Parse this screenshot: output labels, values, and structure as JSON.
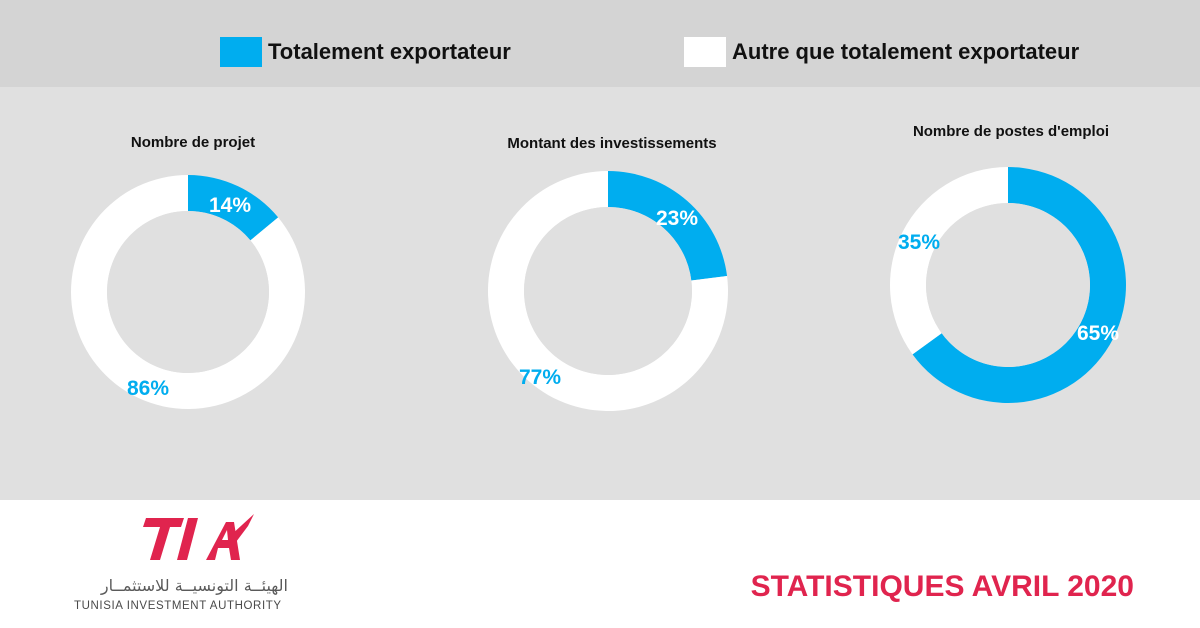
{
  "colors": {
    "primary": "#00adef",
    "secondary": "#ffffff",
    "brand_red": "#e0244e",
    "legend_band": "#d4d4d4",
    "chart_background": "#e0e0e0"
  },
  "legend": [
    {
      "label": "Totalement exportateur",
      "color": "#00adef"
    },
    {
      "label": "Autre que totalement exportateur",
      "color": "#ffffff"
    }
  ],
  "chart_data": [
    {
      "type": "pie",
      "title": "Nombre de projet",
      "categories": [
        "Totalement exportateur",
        "Autre que totalement exportateur"
      ],
      "values": [
        14,
        86
      ],
      "labels": [
        "14%",
        "86%"
      ],
      "legend_position": "top"
    },
    {
      "type": "pie",
      "title": "Montant des investissements",
      "categories": [
        "Totalement exportateur",
        "Autre que totalement exportateur"
      ],
      "values": [
        23,
        77
      ],
      "labels": [
        "23%",
        "77%"
      ],
      "legend_position": "top"
    },
    {
      "type": "pie",
      "title": "Nombre de postes d'emploi",
      "categories": [
        "Totalement exportateur",
        "Autre que totalement exportateur"
      ],
      "values": [
        65,
        35
      ],
      "labels": [
        "65%",
        "35%"
      ],
      "legend_position": "top"
    }
  ],
  "footer": {
    "logo_mark": "TIA",
    "logo_arabic": "الهيئــة التونسيــة للاستثمــار",
    "logo_english": "TUNISIA INVESTMENT AUTHORITY",
    "title": "STATISTIQUES AVRIL 2020"
  }
}
